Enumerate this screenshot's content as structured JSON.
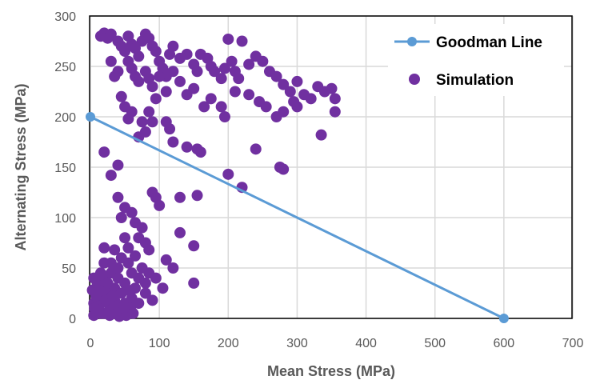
{
  "chart_data": {
    "type": "scatter",
    "title": "",
    "xlabel": "Mean Stress (MPa)",
    "ylabel": "Alternating Stress (MPa)",
    "xlim": [
      0,
      700
    ],
    "ylim": [
      0,
      300
    ],
    "xticks": [
      "0",
      "100",
      "200",
      "300",
      "400",
      "500",
      "600",
      "700"
    ],
    "yticks": [
      "0",
      "50",
      "100",
      "150",
      "200",
      "250",
      "300"
    ],
    "grid": true,
    "legend_position": "top-right",
    "series": [
      {
        "name": "Goodman Line",
        "kind": "line",
        "color": "#5B9BD5",
        "points": [
          [
            0,
            200
          ],
          [
            600,
            0
          ]
        ]
      },
      {
        "name": "Simulation",
        "kind": "scatter",
        "color": "#7030A0",
        "points": [
          [
            15,
            280
          ],
          [
            20,
            283
          ],
          [
            25,
            278
          ],
          [
            30,
            282
          ],
          [
            40,
            275
          ],
          [
            45,
            270
          ],
          [
            50,
            265
          ],
          [
            55,
            280
          ],
          [
            60,
            272
          ],
          [
            65,
            268
          ],
          [
            70,
            260
          ],
          [
            75,
            275
          ],
          [
            80,
            282
          ],
          [
            85,
            278
          ],
          [
            90,
            270
          ],
          [
            95,
            265
          ],
          [
            55,
            255
          ],
          [
            60,
            248
          ],
          [
            65,
            240
          ],
          [
            70,
            235
          ],
          [
            80,
            245
          ],
          [
            85,
            238
          ],
          [
            90,
            230
          ],
          [
            100,
            255
          ],
          [
            105,
            248
          ],
          [
            110,
            240
          ],
          [
            115,
            262
          ],
          [
            120,
            270
          ],
          [
            130,
            258
          ],
          [
            140,
            262
          ],
          [
            150,
            252
          ],
          [
            155,
            245
          ],
          [
            160,
            262
          ],
          [
            170,
            258
          ],
          [
            175,
            250
          ],
          [
            180,
            245
          ],
          [
            190,
            238
          ],
          [
            195,
            248
          ],
          [
            200,
            277
          ],
          [
            205,
            255
          ],
          [
            210,
            245
          ],
          [
            215,
            238
          ],
          [
            220,
            275
          ],
          [
            230,
            252
          ],
          [
            240,
            260
          ],
          [
            250,
            255
          ],
          [
            260,
            245
          ],
          [
            270,
            240
          ],
          [
            280,
            232
          ],
          [
            290,
            225
          ],
          [
            300,
            235
          ],
          [
            310,
            222
          ],
          [
            320,
            218
          ],
          [
            330,
            230
          ],
          [
            340,
            225
          ],
          [
            350,
            228
          ],
          [
            355,
            218
          ],
          [
            355,
            205
          ],
          [
            335,
            182
          ],
          [
            300,
            210
          ],
          [
            295,
            215
          ],
          [
            280,
            205
          ],
          [
            270,
            200
          ],
          [
            255,
            210
          ],
          [
            245,
            215
          ],
          [
            230,
            222
          ],
          [
            210,
            225
          ],
          [
            195,
            200
          ],
          [
            190,
            210
          ],
          [
            175,
            218
          ],
          [
            165,
            210
          ],
          [
            150,
            228
          ],
          [
            140,
            222
          ],
          [
            130,
            235
          ],
          [
            120,
            245
          ],
          [
            110,
            225
          ],
          [
            100,
            240
          ],
          [
            95,
            218
          ],
          [
            90,
            195
          ],
          [
            85,
            205
          ],
          [
            80,
            185
          ],
          [
            75,
            195
          ],
          [
            70,
            180
          ],
          [
            60,
            205
          ],
          [
            55,
            198
          ],
          [
            45,
            220
          ],
          [
            40,
            245
          ],
          [
            30,
            255
          ],
          [
            35,
            240
          ],
          [
            50,
            210
          ],
          [
            110,
            195
          ],
          [
            115,
            188
          ],
          [
            120,
            175
          ],
          [
            140,
            170
          ],
          [
            155,
            168
          ],
          [
            160,
            165
          ],
          [
            240,
            168
          ],
          [
            275,
            150
          ],
          [
            280,
            148
          ],
          [
            20,
            165
          ],
          [
            40,
            152
          ],
          [
            30,
            142
          ],
          [
            200,
            143
          ],
          [
            220,
            130
          ],
          [
            90,
            125
          ],
          [
            95,
            120
          ],
          [
            100,
            112
          ],
          [
            130,
            120
          ],
          [
            155,
            122
          ],
          [
            40,
            120
          ],
          [
            50,
            110
          ],
          [
            60,
            105
          ],
          [
            45,
            100
          ],
          [
            65,
            95
          ],
          [
            75,
            90
          ],
          [
            70,
            80
          ],
          [
            80,
            75
          ],
          [
            85,
            68
          ],
          [
            50,
            80
          ],
          [
            55,
            70
          ],
          [
            35,
            68
          ],
          [
            20,
            70
          ],
          [
            15,
            45
          ],
          [
            110,
            58
          ],
          [
            130,
            85
          ],
          [
            150,
            72
          ],
          [
            120,
            50
          ],
          [
            150,
            35
          ],
          [
            105,
            30
          ],
          [
            90,
            18
          ],
          [
            80,
            25
          ],
          [
            5,
            40
          ],
          [
            10,
            35
          ],
          [
            20,
            42
          ],
          [
            30,
            45
          ],
          [
            40,
            50
          ],
          [
            45,
            60
          ],
          [
            55,
            55
          ],
          [
            60,
            45
          ],
          [
            70,
            40
          ],
          [
            75,
            50
          ],
          [
            85,
            45
          ],
          [
            65,
            30
          ],
          [
            50,
            35
          ],
          [
            35,
            30
          ],
          [
            25,
            25
          ],
          [
            15,
            20
          ],
          [
            5,
            15
          ],
          [
            10,
            8
          ],
          [
            20,
            5
          ],
          [
            30,
            10
          ],
          [
            40,
            12
          ],
          [
            50,
            15
          ],
          [
            60,
            20
          ],
          [
            70,
            15
          ],
          [
            45,
            25
          ],
          [
            35,
            18
          ],
          [
            25,
            15
          ],
          [
            15,
            5
          ],
          [
            5,
            3
          ],
          [
            8,
            22
          ],
          [
            18,
            28
          ],
          [
            28,
            3
          ],
          [
            38,
            5
          ],
          [
            48,
            8
          ],
          [
            58,
            10
          ],
          [
            12,
            12
          ],
          [
            22,
            18
          ],
          [
            32,
            22
          ],
          [
            42,
            2
          ],
          [
            52,
            3
          ],
          [
            62,
            5
          ],
          [
            3,
            28
          ],
          [
            6,
            10
          ],
          [
            25,
            35
          ],
          [
            55,
            28
          ],
          [
            65,
            62
          ],
          [
            40,
            40
          ],
          [
            30,
            55
          ],
          [
            20,
            55
          ],
          [
            80,
            35
          ],
          [
            95,
            40
          ]
        ]
      }
    ]
  }
}
